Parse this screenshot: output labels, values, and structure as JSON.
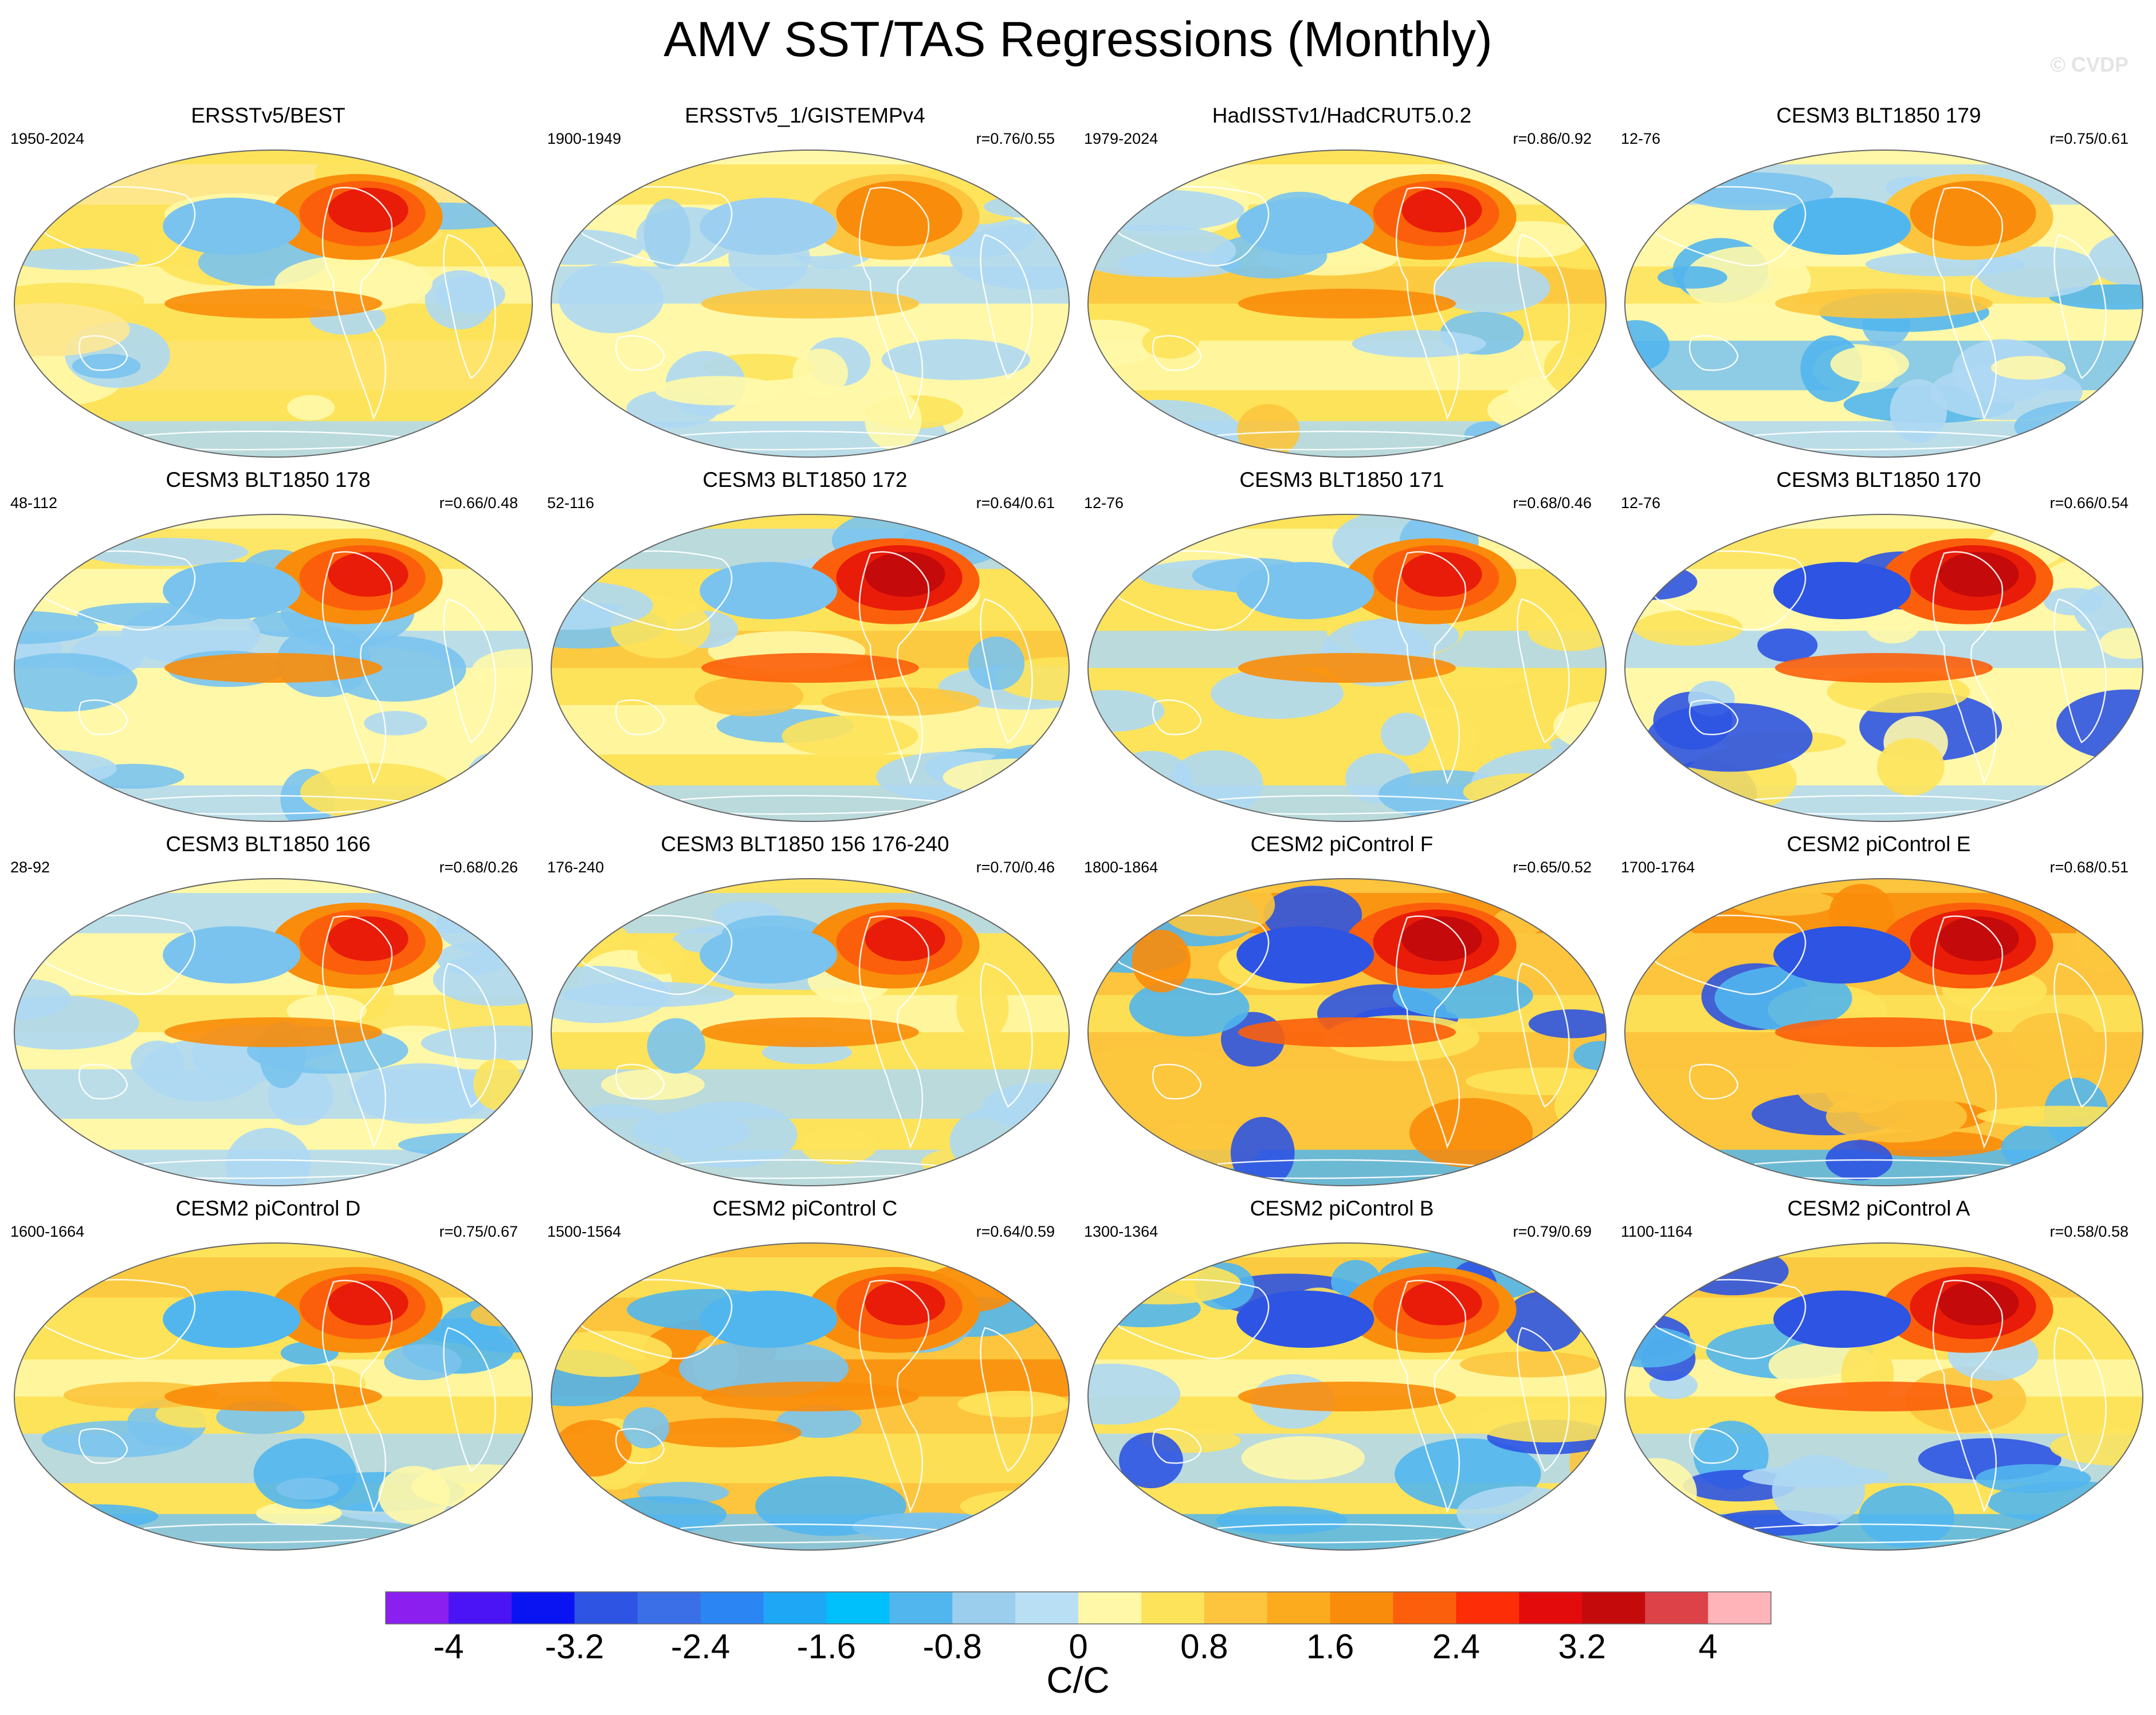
{
  "title": "AMV SST/TAS Regressions (Monthly)",
  "watermark": "© CVDP",
  "panels": [
    {
      "title": "ERSSTv5/BEST",
      "period": "1950-2024",
      "stat": "",
      "ring": [
        "#fde35a",
        "#fee893",
        "#fff8a8",
        "#ffe46f"
      ],
      "warm": [
        "#f98c0a",
        "#fc5f0b",
        "#e81c08"
      ],
      "cool": [
        "#aed8f3",
        "#7ac3ee"
      ]
    },
    {
      "title": "ERSSTv5_1/GISTEMPv4",
      "period": "1900-1949",
      "stat": "r=0.76/0.55",
      "ring": [
        "#fff8a8",
        "#fde35a",
        "#aed8f3",
        "#fff8a8"
      ],
      "warm": [
        "#fcc53d",
        "#f98c0a"
      ],
      "cool": [
        "#aed8f3",
        "#9dd0f0"
      ]
    },
    {
      "title": "HadISSTv1/HadCRUT5.0.2",
      "period": "1979-2024",
      "stat": "r=0.86/0.92",
      "ring": [
        "#fde35a",
        "#fff8a8",
        "#fcc53d",
        "#fff8a8"
      ],
      "warm": [
        "#f98c0a",
        "#fc5f0b",
        "#e81c08"
      ],
      "cool": [
        "#aed8f3",
        "#7ac3ee"
      ]
    },
    {
      "title": "CESM3 BLT1850 179",
      "period": "12-76",
      "stat": "r=0.75/0.61",
      "ring": [
        "#fff8a8",
        "#aed8f3",
        "#fde35a",
        "#7ac3ee"
      ],
      "warm": [
        "#fcc53d",
        "#f98c0a"
      ],
      "cool": [
        "#aed8f3",
        "#52b6ee"
      ]
    },
    {
      "title": "CESM3 BLT1850 178",
      "period": "48-112",
      "stat": "r=0.66/0.48",
      "ring": [
        "#fff8a8",
        "#fde35a",
        "#aed8f3",
        "#fff8a8"
      ],
      "warm": [
        "#f98c0a",
        "#fc5f0b",
        "#e81c08"
      ],
      "cool": [
        "#aed8f3",
        "#7ac3ee"
      ]
    },
    {
      "title": "CESM3 BLT1850 172",
      "period": "52-116",
      "stat": "r=0.64/0.61",
      "ring": [
        "#fde35a",
        "#aed8f3",
        "#fcc53d",
        "#fff8a8"
      ],
      "warm": [
        "#fc5f0b",
        "#e81c08",
        "#c40a0a"
      ],
      "cool": [
        "#aed8f3",
        "#7ac3ee"
      ]
    },
    {
      "title": "CESM3 BLT1850 171",
      "period": "12-76",
      "stat": "r=0.68/0.46",
      "ring": [
        "#fde35a",
        "#fff8a8",
        "#aed8f3",
        "#fde35a"
      ],
      "warm": [
        "#f98c0a",
        "#fc5f0b",
        "#e81c08"
      ],
      "cool": [
        "#aed8f3",
        "#7ac3ee"
      ]
    },
    {
      "title": "CESM3 BLT1850 170",
      "period": "12-76",
      "stat": "r=0.66/0.54",
      "ring": [
        "#fff8a8",
        "#fde35a",
        "#aed8f3",
        "#fff8a8"
      ],
      "warm": [
        "#fc5f0b",
        "#e81c08",
        "#c40a0a"
      ],
      "cool": [
        "#aed8f3",
        "#2d54e2"
      ]
    },
    {
      "title": "CESM3 BLT1850 166",
      "period": "28-92",
      "stat": "r=0.68/0.26",
      "ring": [
        "#fff8a8",
        "#aed8f3",
        "#fde35a",
        "#aed8f3"
      ],
      "warm": [
        "#f98c0a",
        "#fc5f0b",
        "#e81c08"
      ],
      "cool": [
        "#aed8f3",
        "#7ac3ee"
      ]
    },
    {
      "title": "CESM3 BLT1850 156 176-240",
      "period": "176-240",
      "stat": "r=0.70/0.46",
      "ring": [
        "#fde35a",
        "#aed8f3",
        "#fff8a8",
        "#aed8f3"
      ],
      "warm": [
        "#f98c0a",
        "#fc5f0b",
        "#e81c08"
      ],
      "cool": [
        "#aed8f3",
        "#7ac3ee"
      ]
    },
    {
      "title": "CESM2 piControl F",
      "period": "1800-1864",
      "stat": "r=0.65/0.52",
      "ring": [
        "#fcc53d",
        "#f98c0a",
        "#fde35a",
        "#fcc53d"
      ],
      "warm": [
        "#fc5f0b",
        "#e81c08",
        "#c40a0a"
      ],
      "cool": [
        "#52b6ee",
        "#2d54e2"
      ]
    },
    {
      "title": "CESM2 piControl E",
      "period": "1700-1764",
      "stat": "r=0.68/0.51",
      "ring": [
        "#fcc53d",
        "#f98c0a",
        "#fde35a",
        "#fcc53d"
      ],
      "warm": [
        "#fc5f0b",
        "#e81c08",
        "#c40a0a"
      ],
      "cool": [
        "#52b6ee",
        "#2d54e2"
      ]
    },
    {
      "title": "CESM2 piControl D",
      "period": "1600-1664",
      "stat": "r=0.75/0.67",
      "ring": [
        "#fde35a",
        "#fcc53d",
        "#fff8a8",
        "#aed8f3"
      ],
      "warm": [
        "#f98c0a",
        "#fc5f0b",
        "#e81c08"
      ],
      "cool": [
        "#7ac3ee",
        "#52b6ee"
      ]
    },
    {
      "title": "CESM2 piControl C",
      "period": "1500-1564",
      "stat": "r=0.64/0.59",
      "ring": [
        "#fcc53d",
        "#fde35a",
        "#f98c0a",
        "#fde35a"
      ],
      "warm": [
        "#f98c0a",
        "#fc5f0b",
        "#e81c08"
      ],
      "cool": [
        "#7ac3ee",
        "#52b6ee"
      ]
    },
    {
      "title": "CESM2 piControl B",
      "period": "1300-1364",
      "stat": "r=0.79/0.69",
      "ring": [
        "#fde35a",
        "#fcc53d",
        "#fff8a8",
        "#aed8f3"
      ],
      "warm": [
        "#f98c0a",
        "#fc5f0b",
        "#e81c08"
      ],
      "cool": [
        "#52b6ee",
        "#2d54e2"
      ]
    },
    {
      "title": "CESM2 piControl A",
      "period": "1100-1164",
      "stat": "r=0.58/0.58",
      "ring": [
        "#fde35a",
        "#fcc53d",
        "#fff8a8",
        "#aed8f3"
      ],
      "warm": [
        "#fc5f0b",
        "#e81c08",
        "#c40a0a"
      ],
      "cool": [
        "#52b6ee",
        "#2d54e2"
      ]
    }
  ],
  "chart_data": {
    "type": "heatmap",
    "title": "AMV SST/TAS Regressions (Monthly)",
    "projection": "Robinson-style global maps, 4x4 grid",
    "units": "C/C",
    "colorbar": {
      "labels": [
        "-4",
        "-3.2",
        "-2.4",
        "-1.6",
        "-0.8",
        "0",
        "0.8",
        "1.6",
        "2.4",
        "3.2",
        "4"
      ],
      "levels": [
        -4.4,
        -4,
        -3.6,
        -3.2,
        -2.8,
        -2.4,
        -2,
        -1.6,
        -1.2,
        -0.8,
        -0.4,
        0,
        0.4,
        0.8,
        1.2,
        1.6,
        2,
        2.4,
        2.8,
        3.2,
        3.6,
        4,
        4.4
      ],
      "colors": [
        "#8a1ff0",
        "#4b14f5",
        "#0a14f2",
        "#2d54e2",
        "#3a6fe8",
        "#2b85f3",
        "#1ea7f5",
        "#00c0fb",
        "#52b6ee",
        "#9bcdec",
        "#b8dff4",
        "#fff8a8",
        "#fde35a",
        "#fcc53d",
        "#fbab1d",
        "#f98c0a",
        "#fc5f0b",
        "#fd2d08",
        "#e40b0c",
        "#c40a0a",
        "#dc4247",
        "#ffb4b9"
      ]
    },
    "units_label": "C/C"
  }
}
